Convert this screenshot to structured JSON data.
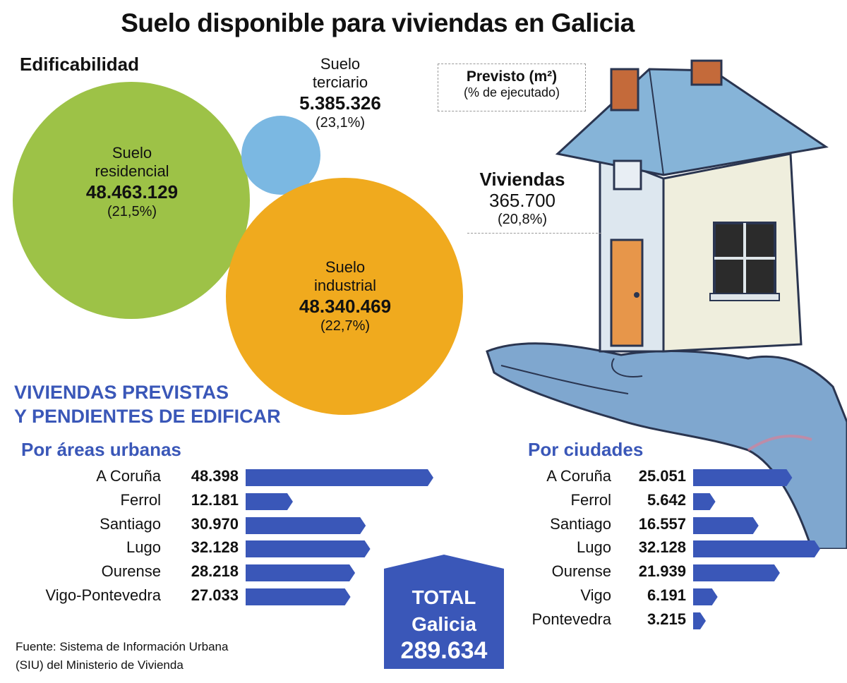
{
  "title": "Suelo disponible para viviendas en Galicia",
  "bubble_section_title": "Edificabilidad",
  "legend": {
    "title": "Previsto (m²)",
    "subtitle": "(% de ejecutado)"
  },
  "viviendas": {
    "name": "Viviendas",
    "value": "365.700",
    "pct": "(20,8%)"
  },
  "section_title_line1": "VIVIENDAS PREVISTAS",
  "section_title_line2": "Y PENDIENTES DE EDIFICAR",
  "total": {
    "line1": "TOTAL",
    "line2": "Galicia",
    "value": "289.634"
  },
  "source_line1": "Fuente: Sistema de Información Urbana",
  "source_line2": "(SIU) del Ministerio de Vivienda",
  "colors": {
    "residencial": "#9dc247",
    "terciario": "#7bb8e2",
    "industrial": "#f0aa1e",
    "bars": "#3a57b8"
  },
  "chart_data": [
    {
      "type": "bubble",
      "title": "Edificabilidad",
      "items": [
        {
          "name_line1": "Suelo",
          "name_line2": "residencial",
          "value": 48463129,
          "value_label": "48.463.129",
          "pct": "(21,5%)"
        },
        {
          "name_line1": "Suelo",
          "name_line2": "terciario",
          "value": 5385326,
          "value_label": "5.385.326",
          "pct": "(23,1%)"
        },
        {
          "name_line1": "Suelo",
          "name_line2": "industrial",
          "value": 48340469,
          "value_label": "48.340.469",
          "pct": "(22,7%)"
        }
      ]
    },
    {
      "type": "bar",
      "title": "Por áreas urbanas",
      "categories": [
        "A Coruña",
        "Ferrol",
        "Santiago",
        "Lugo",
        "Ourense",
        "Vigo-Pontevedra"
      ],
      "values": [
        48398,
        12181,
        30970,
        32128,
        28218,
        27033
      ],
      "labels": [
        "48.398",
        "12.181",
        "30.970",
        "32.128",
        "28.218",
        "27.033"
      ]
    },
    {
      "type": "bar",
      "title": "Por ciudades",
      "categories": [
        "A Coruña",
        "Ferrol",
        "Santiago",
        "Lugo",
        "Ourense",
        "Vigo",
        "Pontevedra"
      ],
      "values": [
        25051,
        5642,
        16557,
        32128,
        21939,
        6191,
        3215
      ],
      "labels": [
        "25.051",
        "5.642",
        "16.557",
        "32.128",
        "21.939",
        "6.191",
        "3.215"
      ]
    }
  ]
}
